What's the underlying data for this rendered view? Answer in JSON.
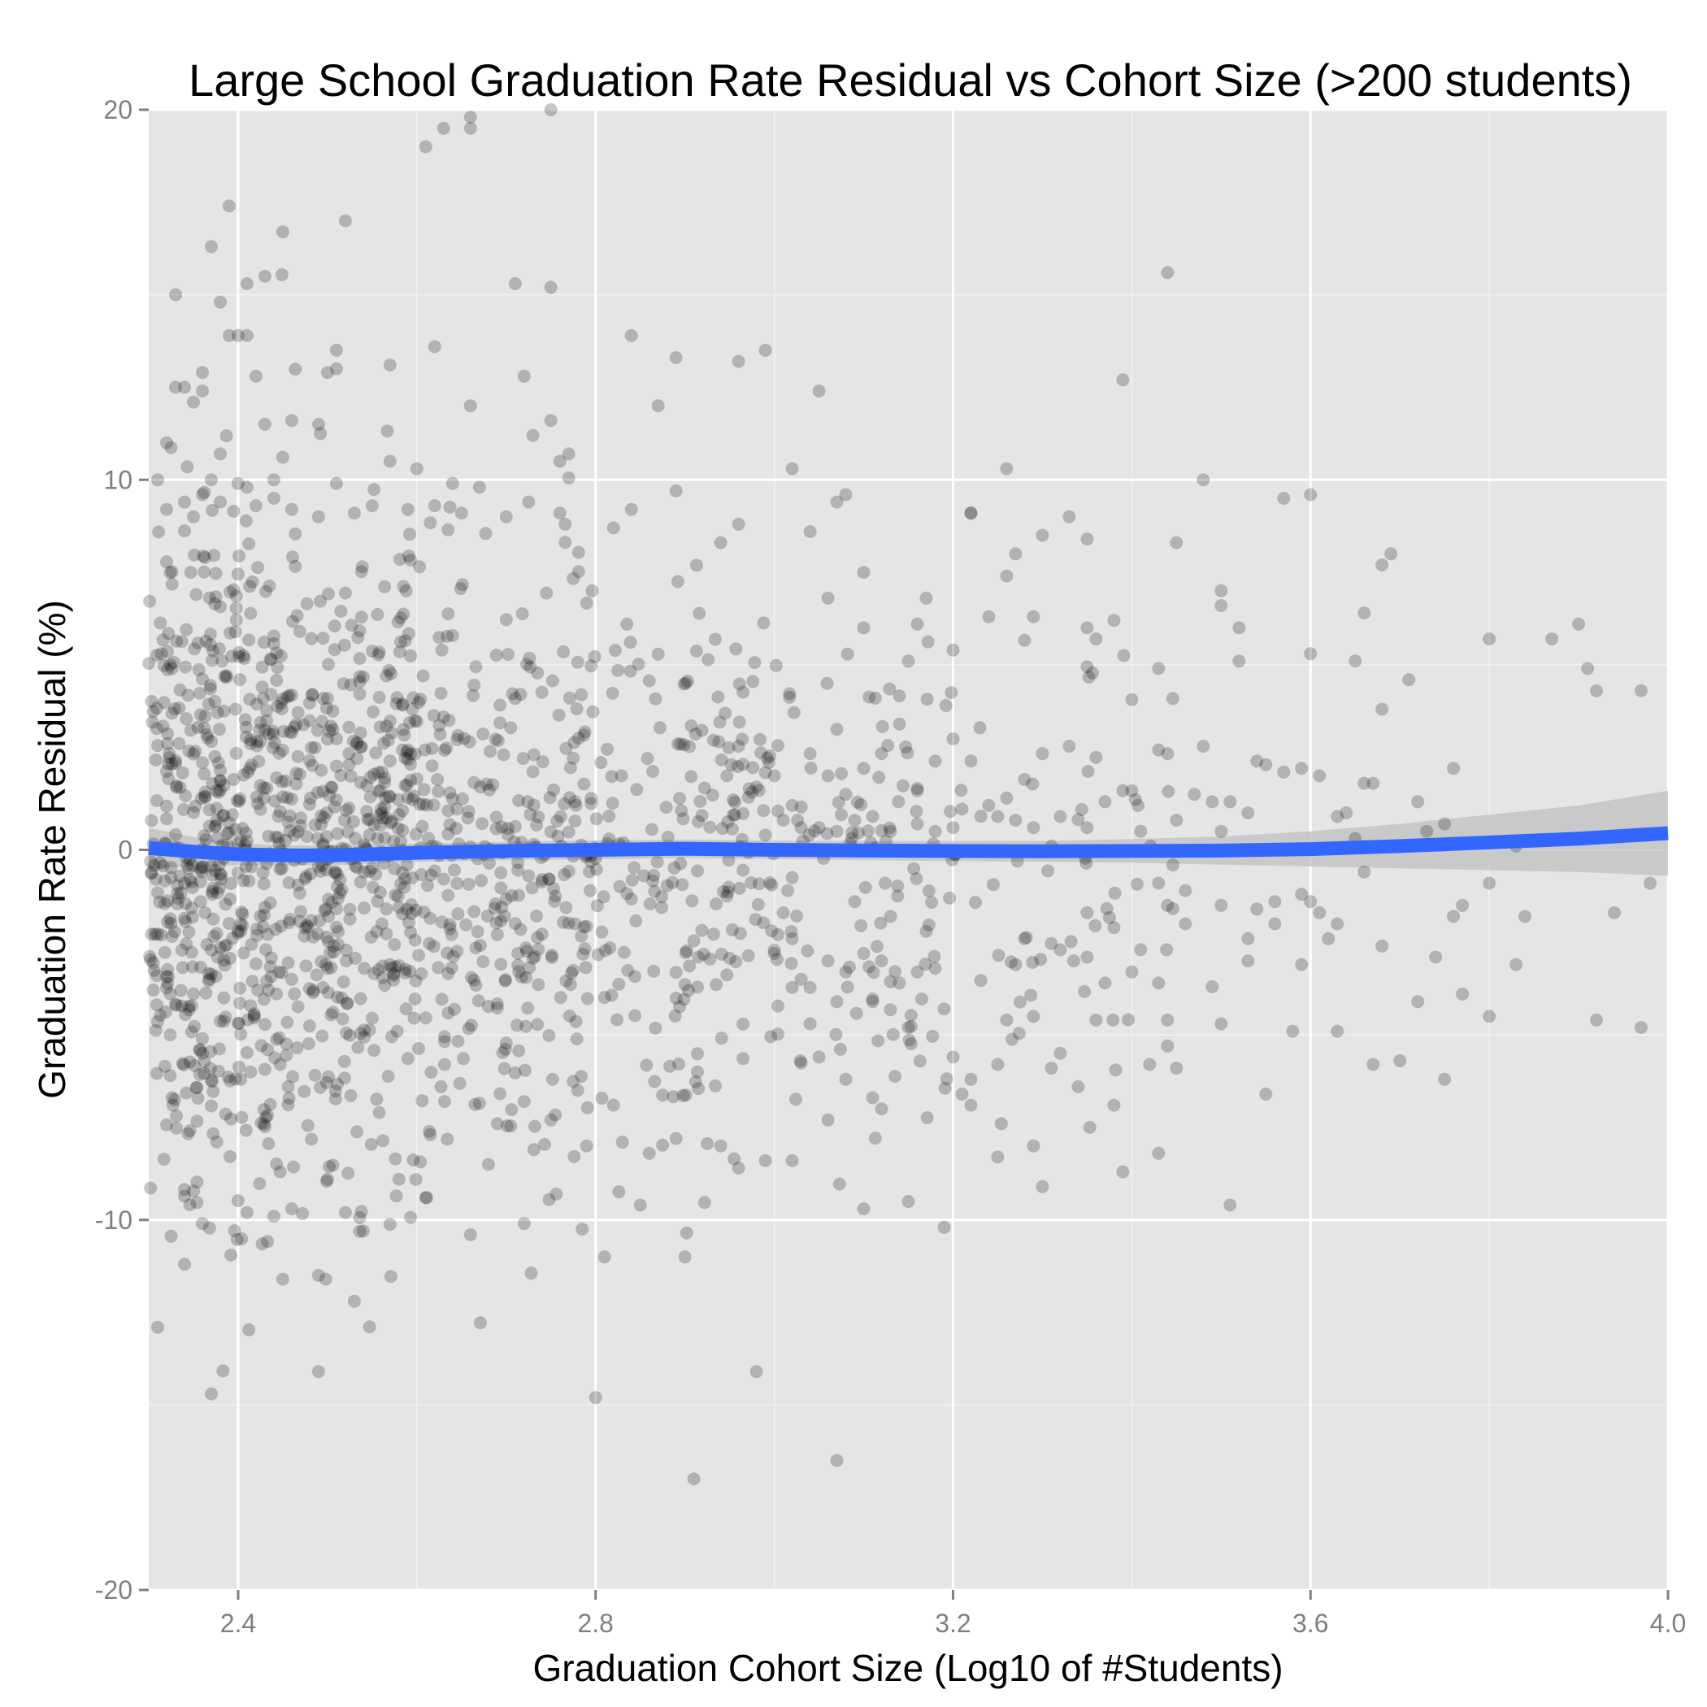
{
  "chart_data": {
    "type": "scatter",
    "title": "Large School Graduation Rate Residual vs Cohort Size (>200 students)",
    "xlabel": "Graduation Cohort Size (Log10 of #Students)",
    "ylabel": "Graduation Rate Residual (%)",
    "xlim": [
      2.3,
      4.0
    ],
    "ylim": [
      -20,
      20
    ],
    "xticks": [
      2.4,
      2.8,
      3.2,
      3.6,
      4.0
    ],
    "xtick_labels": [
      "2.4",
      "2.8",
      "3.2",
      "3.6",
      "4.0"
    ],
    "yticks": [
      -20,
      -10,
      0,
      10,
      20
    ],
    "ytick_labels": [
      "-20",
      "-10",
      "0",
      "10",
      "20"
    ],
    "grid": true,
    "colors": {
      "panel": "#e5e5e5",
      "grid_major": "#ffffff",
      "grid_minor": "#f2f2f2",
      "points": "#000000",
      "smooth_line": "#3366ff",
      "ribbon": "#bfbfbf"
    },
    "smooth": {
      "x": [
        2.3,
        2.35,
        2.4,
        2.45,
        2.5,
        2.55,
        2.6,
        2.7,
        2.8,
        2.9,
        3.0,
        3.1,
        3.2,
        3.3,
        3.4,
        3.5,
        3.6,
        3.7,
        3.8,
        3.9,
        4.0
      ],
      "y": [
        0.05,
        -0.05,
        -0.12,
        -0.15,
        -0.15,
        -0.12,
        -0.08,
        -0.03,
        0.0,
        0.03,
        0.0,
        -0.02,
        -0.03,
        -0.04,
        -0.03,
        -0.02,
        0.02,
        0.1,
        0.2,
        0.3,
        0.45
      ],
      "lower": [
        -0.5,
        -0.45,
        -0.42,
        -0.42,
        -0.42,
        -0.38,
        -0.33,
        -0.28,
        -0.26,
        -0.22,
        -0.25,
        -0.28,
        -0.3,
        -0.32,
        -0.35,
        -0.4,
        -0.45,
        -0.5,
        -0.55,
        -0.6,
        -0.7
      ],
      "upper": [
        0.6,
        0.35,
        0.18,
        0.12,
        0.12,
        0.14,
        0.17,
        0.22,
        0.26,
        0.28,
        0.25,
        0.24,
        0.24,
        0.24,
        0.29,
        0.36,
        0.5,
        0.7,
        0.95,
        1.2,
        1.6
      ]
    },
    "points": [
      [
        2.31,
        -12.9
      ],
      [
        2.37,
        -14.7
      ],
      [
        2.49,
        -14.1
      ],
      [
        2.61,
        19.0
      ],
      [
        2.63,
        19.5
      ],
      [
        2.66,
        19.8
      ],
      [
        2.66,
        19.5
      ],
      [
        2.75,
        20.0
      ],
      [
        2.39,
        17.4
      ],
      [
        2.37,
        16.3
      ],
      [
        2.45,
        16.7
      ],
      [
        2.52,
        17.0
      ],
      [
        2.33,
        15.0
      ],
      [
        2.38,
        14.8
      ],
      [
        2.41,
        15.3
      ],
      [
        2.43,
        15.5
      ],
      [
        2.71,
        15.3
      ],
      [
        2.75,
        15.2
      ],
      [
        2.39,
        13.9
      ],
      [
        2.41,
        13.9
      ],
      [
        2.4,
        13.9
      ],
      [
        2.51,
        13.5
      ],
      [
        2.62,
        13.6
      ],
      [
        2.84,
        13.9
      ],
      [
        2.89,
        13.3
      ],
      [
        2.96,
        13.2
      ],
      [
        2.99,
        13.5
      ],
      [
        2.36,
        12.9
      ],
      [
        2.5,
        12.9
      ],
      [
        2.51,
        13.0
      ],
      [
        2.57,
        13.1
      ],
      [
        2.33,
        12.5
      ],
      [
        2.34,
        12.5
      ],
      [
        2.35,
        12.1
      ],
      [
        2.36,
        12.4
      ],
      [
        2.42,
        12.8
      ],
      [
        2.72,
        12.8
      ],
      [
        2.87,
        12.0
      ],
      [
        3.05,
        12.4
      ],
      [
        3.39,
        12.7
      ],
      [
        2.46,
        11.6
      ],
      [
        2.49,
        11.5
      ],
      [
        2.66,
        12.0
      ],
      [
        2.73,
        11.2
      ],
      [
        2.75,
        11.6
      ],
      [
        2.43,
        11.5
      ],
      [
        2.32,
        11.0
      ],
      [
        2.38,
        10.7
      ],
      [
        2.77,
        10.7
      ],
      [
        2.76,
        10.5
      ],
      [
        2.57,
        10.5
      ],
      [
        2.6,
        10.3
      ],
      [
        3.02,
        10.3
      ],
      [
        3.26,
        10.3
      ],
      [
        2.31,
        10.0
      ],
      [
        2.37,
        10.0
      ],
      [
        2.4,
        9.9
      ],
      [
        2.41,
        9.8
      ],
      [
        2.44,
        10.0
      ],
      [
        2.51,
        9.9
      ],
      [
        2.64,
        9.9
      ],
      [
        2.67,
        9.8
      ],
      [
        2.89,
        9.7
      ],
      [
        3.08,
        9.6
      ],
      [
        3.48,
        10.0
      ],
      [
        3.57,
        9.5
      ],
      [
        3.6,
        9.6
      ],
      [
        3.44,
        15.6
      ],
      [
        3.22,
        9.1
      ],
      [
        3.33,
        9.0
      ],
      [
        3.35,
        8.4
      ],
      [
        3.45,
        8.3
      ],
      [
        2.32,
        9.2
      ],
      [
        2.34,
        9.4
      ],
      [
        2.35,
        9.0
      ],
      [
        2.36,
        9.6
      ],
      [
        2.38,
        9.4
      ],
      [
        2.42,
        9.3
      ],
      [
        2.44,
        9.5
      ],
      [
        2.46,
        9.2
      ],
      [
        2.49,
        9.0
      ],
      [
        2.53,
        9.1
      ],
      [
        2.55,
        9.3
      ],
      [
        2.59,
        9.2
      ],
      [
        2.62,
        9.3
      ],
      [
        2.65,
        9.1
      ],
      [
        2.7,
        9.0
      ],
      [
        2.76,
        9.1
      ],
      [
        2.82,
        8.7
      ],
      [
        2.84,
        9.2
      ],
      [
        2.94,
        8.3
      ],
      [
        2.96,
        8.8
      ],
      [
        3.04,
        8.6
      ],
      [
        3.07,
        9.4
      ],
      [
        3.22,
        9.1
      ],
      [
        3.3,
        8.5
      ],
      [
        3.69,
        8.0
      ],
      [
        3.68,
        7.7
      ],
      [
        3.26,
        7.4
      ],
      [
        3.27,
        8.0
      ],
      [
        3.1,
        7.5
      ],
      [
        3.06,
        6.8
      ],
      [
        3.1,
        6.0
      ],
      [
        3.16,
        6.1
      ],
      [
        3.17,
        6.8
      ],
      [
        3.15,
        5.1
      ],
      [
        3.2,
        5.4
      ],
      [
        3.24,
        6.3
      ],
      [
        3.29,
        6.3
      ],
      [
        3.35,
        6.0
      ],
      [
        3.38,
        6.2
      ],
      [
        3.36,
        5.7
      ],
      [
        3.43,
        4.9
      ],
      [
        3.5,
        7.0
      ],
      [
        3.5,
        6.6
      ],
      [
        3.52,
        6.0
      ],
      [
        3.52,
        5.1
      ],
      [
        3.6,
        5.3
      ],
      [
        3.65,
        5.1
      ],
      [
        3.66,
        6.4
      ],
      [
        3.8,
        5.7
      ],
      [
        3.87,
        5.7
      ],
      [
        3.9,
        6.1
      ],
      [
        3.91,
        4.9
      ],
      [
        3.92,
        4.3
      ],
      [
        3.97,
        4.3
      ],
      [
        3.71,
        4.6
      ],
      [
        3.68,
        3.8
      ],
      [
        3.59,
        2.2
      ],
      [
        3.55,
        2.3
      ],
      [
        3.57,
        2.1
      ],
      [
        3.61,
        2.0
      ],
      [
        3.54,
        2.4
      ],
      [
        3.48,
        2.8
      ],
      [
        3.43,
        2.7
      ],
      [
        3.44,
        2.6
      ],
      [
        3.39,
        1.6
      ],
      [
        3.4,
        1.6
      ],
      [
        3.36,
        2.5
      ],
      [
        3.33,
        2.8
      ],
      [
        3.3,
        2.6
      ],
      [
        3.28,
        1.9
      ],
      [
        3.26,
        1.4
      ],
      [
        3.24,
        1.2
      ],
      [
        3.21,
        1.1
      ],
      [
        3.22,
        2.4
      ],
      [
        3.23,
        3.3
      ],
      [
        3.2,
        3.0
      ],
      [
        3.18,
        2.4
      ],
      [
        3.16,
        1.6
      ],
      [
        3.14,
        3.4
      ],
      [
        3.12,
        2.6
      ],
      [
        3.1,
        2.2
      ],
      [
        3.08,
        1.5
      ],
      [
        3.06,
        2.0
      ],
      [
        3.04,
        2.6
      ],
      [
        3.02,
        1.2
      ],
      [
        3.0,
        2.0
      ],
      [
        2.98,
        1.7
      ],
      [
        2.96,
        2.8
      ],
      [
        3.72,
        1.3
      ],
      [
        3.66,
        1.8
      ],
      [
        3.64,
        1.0
      ],
      [
        3.63,
        0.9
      ],
      [
        3.65,
        0.3
      ],
      [
        3.67,
        1.8
      ],
      [
        3.73,
        0.5
      ],
      [
        3.75,
        0.7
      ],
      [
        3.76,
        2.2
      ],
      [
        3.83,
        0.1
      ],
      [
        3.53,
        1.0
      ],
      [
        3.51,
        1.3
      ],
      [
        3.49,
        1.3
      ],
      [
        3.47,
        1.5
      ],
      [
        3.5,
        0.5
      ],
      [
        3.45,
        0.8
      ],
      [
        3.41,
        0.5
      ],
      [
        3.37,
        1.3
      ],
      [
        3.35,
        0.6
      ],
      [
        3.32,
        0.9
      ],
      [
        3.31,
        0.1
      ],
      [
        3.29,
        0.6
      ],
      [
        3.27,
        0.8
      ],
      [
        3.25,
        0.9
      ],
      [
        3.2,
        0.6
      ],
      [
        3.18,
        0.5
      ],
      [
        3.16,
        0.7
      ],
      [
        3.13,
        0.5
      ],
      [
        3.11,
        0.9
      ],
      [
        3.09,
        0.8
      ],
      [
        3.07,
        0.5
      ],
      [
        3.05,
        0.6
      ],
      [
        3.03,
        0.6
      ],
      [
        3.01,
        0.8
      ],
      [
        2.99,
        0.4
      ],
      [
        3.94,
        -1.7
      ],
      [
        3.98,
        -0.9
      ],
      [
        3.97,
        -4.8
      ],
      [
        3.92,
        -4.6
      ],
      [
        3.84,
        -1.8
      ],
      [
        3.83,
        -3.1
      ],
      [
        3.8,
        -0.9
      ],
      [
        3.8,
        -4.5
      ],
      [
        3.77,
        -1.5
      ],
      [
        3.76,
        -1.8
      ],
      [
        3.77,
        -3.9
      ],
      [
        3.74,
        -2.9
      ],
      [
        3.72,
        -4.1
      ],
      [
        3.75,
        -6.2
      ],
      [
        3.7,
        -5.7
      ],
      [
        3.67,
        -5.8
      ],
      [
        3.68,
        -2.6
      ],
      [
        3.66,
        -0.6
      ],
      [
        3.61,
        -1.7
      ],
      [
        3.6,
        -1.4
      ],
      [
        3.59,
        -1.2
      ],
      [
        3.59,
        -3.1
      ],
      [
        3.58,
        -4.9
      ],
      [
        3.62,
        -2.4
      ],
      [
        3.63,
        -2.0
      ],
      [
        3.63,
        -4.9
      ],
      [
        3.56,
        -1.4
      ],
      [
        3.56,
        -2.0
      ],
      [
        3.54,
        -1.6
      ],
      [
        3.53,
        -2.4
      ],
      [
        3.53,
        -3.0
      ],
      [
        3.55,
        -6.6
      ],
      [
        3.51,
        -9.6
      ],
      [
        3.5,
        -4.7
      ],
      [
        3.5,
        -1.5
      ],
      [
        3.49,
        -3.7
      ],
      [
        3.46,
        -2.0
      ],
      [
        3.46,
        -1.1
      ],
      [
        3.44,
        -1.5
      ],
      [
        3.43,
        -0.9
      ],
      [
        3.43,
        -3.6
      ],
      [
        3.44,
        -4.6
      ],
      [
        3.44,
        -5.3
      ],
      [
        3.45,
        -5.9
      ],
      [
        3.43,
        -8.2
      ],
      [
        3.42,
        -5.8
      ],
      [
        3.41,
        -2.7
      ],
      [
        3.4,
        -3.3
      ],
      [
        3.38,
        -2.1
      ],
      [
        3.37,
        -3.6
      ],
      [
        3.36,
        -4.6
      ],
      [
        3.35,
        -1.7
      ],
      [
        3.35,
        -2.9
      ],
      [
        3.34,
        -6.4
      ],
      [
        3.32,
        -5.5
      ],
      [
        3.31,
        -5.9
      ],
      [
        3.29,
        -4.5
      ],
      [
        3.28,
        -2.4
      ],
      [
        3.27,
        -3.1
      ],
      [
        3.26,
        -4.6
      ],
      [
        3.25,
        -5.8
      ],
      [
        3.25,
        -8.3
      ],
      [
        3.29,
        -8.0
      ],
      [
        3.3,
        -9.1
      ],
      [
        3.39,
        -8.7
      ],
      [
        3.38,
        -6.9
      ],
      [
        3.22,
        -6.2
      ],
      [
        3.22,
        -6.9
      ],
      [
        3.21,
        -6.6
      ],
      [
        3.2,
        -5.6
      ],
      [
        3.19,
        -4.3
      ],
      [
        3.18,
        -3.2
      ],
      [
        3.17,
        -2.2
      ],
      [
        3.16,
        -3.3
      ],
      [
        3.15,
        -4.8
      ],
      [
        3.14,
        -3.6
      ],
      [
        3.13,
        -1.8
      ],
      [
        3.12,
        -3.0
      ],
      [
        3.11,
        -4.1
      ],
      [
        3.1,
        -2.8
      ],
      [
        3.09,
        -1.4
      ],
      [
        3.08,
        -3.3
      ],
      [
        3.07,
        -4.1
      ],
      [
        3.06,
        -3.0
      ],
      [
        3.05,
        -5.6
      ],
      [
        3.04,
        -4.7
      ],
      [
        3.03,
        -3.5
      ],
      [
        3.02,
        -2.4
      ],
      [
        3.01,
        -1.7
      ],
      [
        3.0,
        -2.8
      ],
      [
        3.08,
        -6.2
      ],
      [
        3.06,
        -7.3
      ],
      [
        3.11,
        -6.7
      ],
      [
        3.12,
        -7.0
      ],
      [
        3.1,
        -9.7
      ],
      [
        3.15,
        -9.5
      ],
      [
        3.19,
        -10.2
      ],
      [
        3.07,
        -16.5
      ],
      [
        2.91,
        -17.0
      ],
      [
        2.98,
        -14.1
      ],
      [
        2.8,
        -14.8
      ],
      [
        2.9,
        -11.0
      ],
      [
        2.81,
        -11.0
      ],
      [
        2.72,
        -10.1
      ],
      [
        2.66,
        -10.4
      ],
      [
        2.54,
        -10.3
      ],
      [
        2.52,
        -9.8
      ],
      [
        2.45,
        -11.6
      ],
      [
        2.49,
        -11.5
      ],
      [
        2.53,
        -12.2
      ],
      [
        2.34,
        -11.2
      ],
      [
        2.36,
        -10.1
      ],
      [
        2.41,
        -9.8
      ],
      [
        2.44,
        -9.9
      ],
      [
        2.46,
        -9.7
      ],
      [
        2.5,
        -8.9
      ],
      [
        2.58,
        -8.9
      ],
      [
        2.61,
        -9.4
      ],
      [
        2.68,
        -8.5
      ],
      [
        2.75,
        -7.3
      ],
      [
        2.79,
        -8.0
      ],
      [
        2.85,
        -9.6
      ],
      [
        2.96,
        -8.6
      ],
      [
        2.94,
        -8.0
      ],
      [
        2.99,
        -8.4
      ],
      [
        3.02,
        -8.4
      ],
      [
        2.89,
        -7.8
      ],
      [
        2.86,
        -8.2
      ],
      [
        2.83,
        -7.9
      ],
      [
        2.82,
        -6.9
      ],
      [
        2.78,
        -6.5
      ],
      [
        2.72,
        -6.8
      ],
      [
        2.69,
        -7.4
      ]
    ],
    "cluster_seed": 20240101
  }
}
